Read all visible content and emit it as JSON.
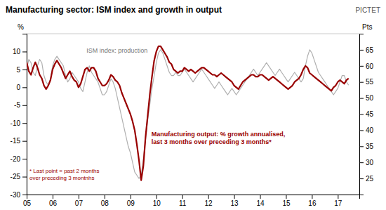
{
  "chart_data": {
    "type": "line",
    "title": "Manufacturing sector: ISM index and growth in output",
    "ylabel": "%",
    "y2label": "Pts",
    "annotations": [
      "* Last point = past 2 months\nover preceding 3 montnhs",
      "Manufacturing output: % growth annualised,\nlast 3 months over preceding 3 months*",
      "ISM index: production",
      "PICTET"
    ],
    "xlim": [
      2005,
      2017.83
    ],
    "xticks": [
      {
        "value": 2005,
        "label": "05"
      },
      {
        "value": 2006,
        "label": "06"
      },
      {
        "value": 2007,
        "label": "07"
      },
      {
        "value": 2008,
        "label": "08"
      },
      {
        "value": 2009,
        "label": "09"
      },
      {
        "value": 2010,
        "label": "10"
      },
      {
        "value": 2011,
        "label": "11"
      },
      {
        "value": 2012,
        "label": "12"
      },
      {
        "value": 2013,
        "label": "13"
      },
      {
        "value": 2014,
        "label": "14"
      },
      {
        "value": 2015,
        "label": "15"
      },
      {
        "value": 2016,
        "label": "16"
      },
      {
        "value": 2017,
        "label": "17"
      }
    ],
    "ylim": [
      -30,
      15
    ],
    "yticks": [
      -30,
      -25,
      -20,
      -15,
      -10,
      -5,
      0,
      5,
      10
    ],
    "y2lim": [
      20,
      70
    ],
    "y2ticks": [
      25,
      30,
      35,
      40,
      45,
      50,
      55,
      60,
      65
    ],
    "x": [
      2005,
      2005.0833,
      2005.1667,
      2005.25,
      2005.3333,
      2005.4167,
      2005.5,
      2005.5833,
      2005.6667,
      2005.75,
      2005.8333,
      2005.9167,
      2006,
      2006.0833,
      2006.1667,
      2006.25,
      2006.3333,
      2006.4167,
      2006.5,
      2006.5833,
      2006.6667,
      2006.75,
      2006.8333,
      2006.9167,
      2007,
      2007.0833,
      2007.1667,
      2007.25,
      2007.3333,
      2007.4167,
      2007.5,
      2007.5833,
      2007.6667,
      2007.75,
      2007.8333,
      2007.9167,
      2008,
      2008.0833,
      2008.1667,
      2008.25,
      2008.3333,
      2008.4167,
      2008.5,
      2008.5833,
      2008.6667,
      2008.75,
      2008.8333,
      2008.9167,
      2009,
      2009.0833,
      2009.1667,
      2009.25,
      2009.3333,
      2009.4167,
      2009.5,
      2009.5833,
      2009.6667,
      2009.75,
      2009.8333,
      2009.9167,
      2010,
      2010.0833,
      2010.1667,
      2010.25,
      2010.3333,
      2010.4167,
      2010.5,
      2010.5833,
      2010.6667,
      2010.75,
      2010.8333,
      2010.9167,
      2011,
      2011.0833,
      2011.1667,
      2011.25,
      2011.3333,
      2011.4167,
      2011.5,
      2011.5833,
      2011.6667,
      2011.75,
      2011.8333,
      2011.9167,
      2012,
      2012.0833,
      2012.1667,
      2012.25,
      2012.3333,
      2012.4167,
      2012.5,
      2012.5833,
      2012.6667,
      2012.75,
      2012.8333,
      2012.9167,
      2013,
      2013.0833,
      2013.1667,
      2013.25,
      2013.3333,
      2013.4167,
      2013.5,
      2013.5833,
      2013.6667,
      2013.75,
      2013.8333,
      2013.9167,
      2014,
      2014.0833,
      2014.1667,
      2014.25,
      2014.3333,
      2014.4167,
      2014.5,
      2014.5833,
      2014.6667,
      2014.75,
      2014.8333,
      2014.9167,
      2015,
      2015.0833,
      2015.1667,
      2015.25,
      2015.3333,
      2015.4167,
      2015.5,
      2015.5833,
      2015.6667,
      2015.75,
      2015.8333,
      2015.9167,
      2016,
      2016.0833,
      2016.1667,
      2016.25,
      2016.3333,
      2016.4167,
      2016.5,
      2016.5833,
      2016.6667,
      2016.75,
      2016.8333,
      2016.9167,
      2017,
      2017.0833,
      2017.1667,
      2017.25,
      2017.3333,
      2017.4167
    ],
    "series": [
      {
        "color": "#b0b0b0",
        "axis": "y2",
        "values": [
          59,
          62,
          61,
          58,
          57,
          60,
          62,
          61,
          57,
          55,
          54,
          56,
          60,
          62,
          63,
          62,
          61,
          60,
          57,
          55,
          56,
          58,
          57,
          56,
          55,
          53,
          52,
          55,
          58,
          60,
          58,
          57,
          56,
          55,
          53,
          51,
          51,
          52,
          54,
          56,
          55,
          53,
          50,
          47,
          44,
          41,
          38,
          35,
          33,
          30,
          27,
          26,
          25,
          26,
          31,
          37,
          43,
          48,
          53,
          57,
          61,
          64,
          65,
          64,
          62,
          60,
          58,
          57,
          57,
          58,
          57,
          57,
          58,
          59,
          58,
          57,
          56,
          55,
          56,
          57,
          58,
          59,
          58,
          57,
          56,
          55,
          54,
          53,
          54,
          55,
          54,
          53,
          52,
          51,
          52,
          53,
          52,
          51,
          52,
          53,
          54,
          55,
          56,
          57,
          58,
          59,
          58,
          57,
          58,
          59,
          60,
          61,
          60,
          59,
          58,
          57,
          58,
          59,
          58,
          57,
          56,
          55,
          56,
          57,
          58,
          57,
          56,
          55,
          56,
          60,
          63,
          65,
          64,
          62,
          60,
          58,
          57,
          56,
          55,
          54,
          53,
          52,
          51,
          52,
          53,
          55,
          57,
          57,
          55,
          54
        ]
      },
      {
        "color": "#990000",
        "values": [
          7.0,
          4.5,
          3.5,
          5.5,
          7.0,
          5.5,
          3.5,
          2.5,
          0.5,
          -0.5,
          0.5,
          2.0,
          5.0,
          6.5,
          7.5,
          6.5,
          5.5,
          4.0,
          2.5,
          3.5,
          4.5,
          3.0,
          2.0,
          1.5,
          0.0,
          1.0,
          3.0,
          5.0,
          5.5,
          4.5,
          5.5,
          5.5,
          4.5,
          2.5,
          1.5,
          0.5,
          0.5,
          1.0,
          2.0,
          3.5,
          3.0,
          2.0,
          1.5,
          0.5,
          -1.5,
          -3.0,
          -4.5,
          -6.0,
          -7.5,
          -9.5,
          -12.0,
          -16.0,
          -20.5,
          -26.0,
          -22.0,
          -14.0,
          -8.0,
          -2.0,
          3.0,
          7.5,
          10.0,
          11.5,
          11.5,
          10.5,
          9.5,
          8.5,
          7.0,
          6.5,
          5.0,
          4.5,
          4.0,
          4.5,
          4.5,
          5.5,
          5.0,
          4.5,
          5.0,
          4.5,
          4.0,
          4.5,
          5.0,
          5.5,
          5.5,
          5.0,
          4.5,
          4.0,
          3.5,
          3.5,
          3.0,
          3.5,
          4.0,
          3.5,
          3.0,
          2.5,
          2.0,
          1.5,
          0.5,
          0.0,
          -0.5,
          0.5,
          1.5,
          2.0,
          2.5,
          3.0,
          3.5,
          3.5,
          3.0,
          3.0,
          3.5,
          3.5,
          3.0,
          2.5,
          2.0,
          2.5,
          3.0,
          2.5,
          2.0,
          1.5,
          1.0,
          0.5,
          0.0,
          -0.5,
          0.0,
          0.5,
          1.5,
          2.0,
          2.5,
          3.5,
          5.0,
          6.0,
          5.5,
          4.0,
          3.5,
          3.0,
          2.5,
          2.0,
          1.5,
          1.0,
          0.5,
          0.0,
          -0.5,
          -1.0,
          0.0,
          0.5,
          1.5,
          2.0,
          1.5,
          1.0,
          2.0,
          2.5
        ]
      }
    ]
  }
}
